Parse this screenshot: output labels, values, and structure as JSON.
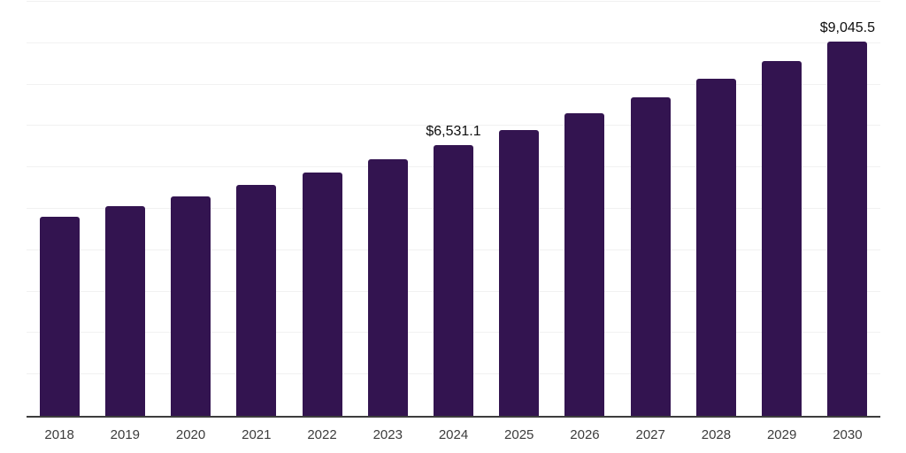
{
  "chart_data": {
    "type": "bar",
    "title": "",
    "xlabel": "",
    "ylabel": "",
    "categories": [
      "2018",
      "2019",
      "2020",
      "2021",
      "2022",
      "2023",
      "2024",
      "2025",
      "2026",
      "2027",
      "2028",
      "2029",
      "2030"
    ],
    "values": [
      4810,
      5070,
      5300,
      5580,
      5880,
      6200,
      6531.1,
      6900,
      7310,
      7690,
      8140,
      8570,
      9045.5
    ],
    "value_labels": {
      "2024": "$6,531.1",
      "2030": "$9,045.5"
    },
    "ylim": [
      0,
      10000
    ],
    "gridline_step": 1000,
    "grid": true,
    "legend": "none",
    "colors": {
      "bar": "#331450",
      "gridline": "#f1f1f1",
      "axis_line": "#3d3d3d",
      "tick_label": "#3c3c3c",
      "value_label": "#0d0d0d",
      "background": "#ffffff"
    }
  }
}
